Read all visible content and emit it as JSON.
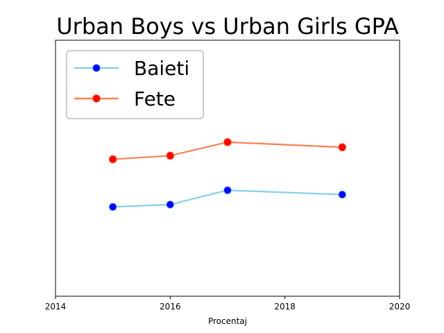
{
  "chart_data": {
    "type": "line",
    "title": "Urban Boys vs Urban Girls GPA",
    "xlabel": "Procentaj",
    "ylabel": "",
    "xlim": [
      2014,
      2020
    ],
    "ylim": [
      0,
      10
    ],
    "x_ticks": [
      "2014",
      "2016",
      "2018",
      "2020"
    ],
    "x": [
      2015,
      2016,
      2017,
      2019
    ],
    "y_axis_ticks_visible": false,
    "grid": false,
    "legend_position": "upper-left",
    "series": [
      {
        "name": "Baieti",
        "values": [
          3.49,
          3.58,
          4.14,
          3.97
        ],
        "line_color": "#87ceeb",
        "marker_color": "#0000ff"
      },
      {
        "name": "Fete",
        "values": [
          5.35,
          5.49,
          6.02,
          5.82
        ],
        "line_color": "#ff7f50",
        "marker_color": "#ff0000"
      }
    ]
  }
}
